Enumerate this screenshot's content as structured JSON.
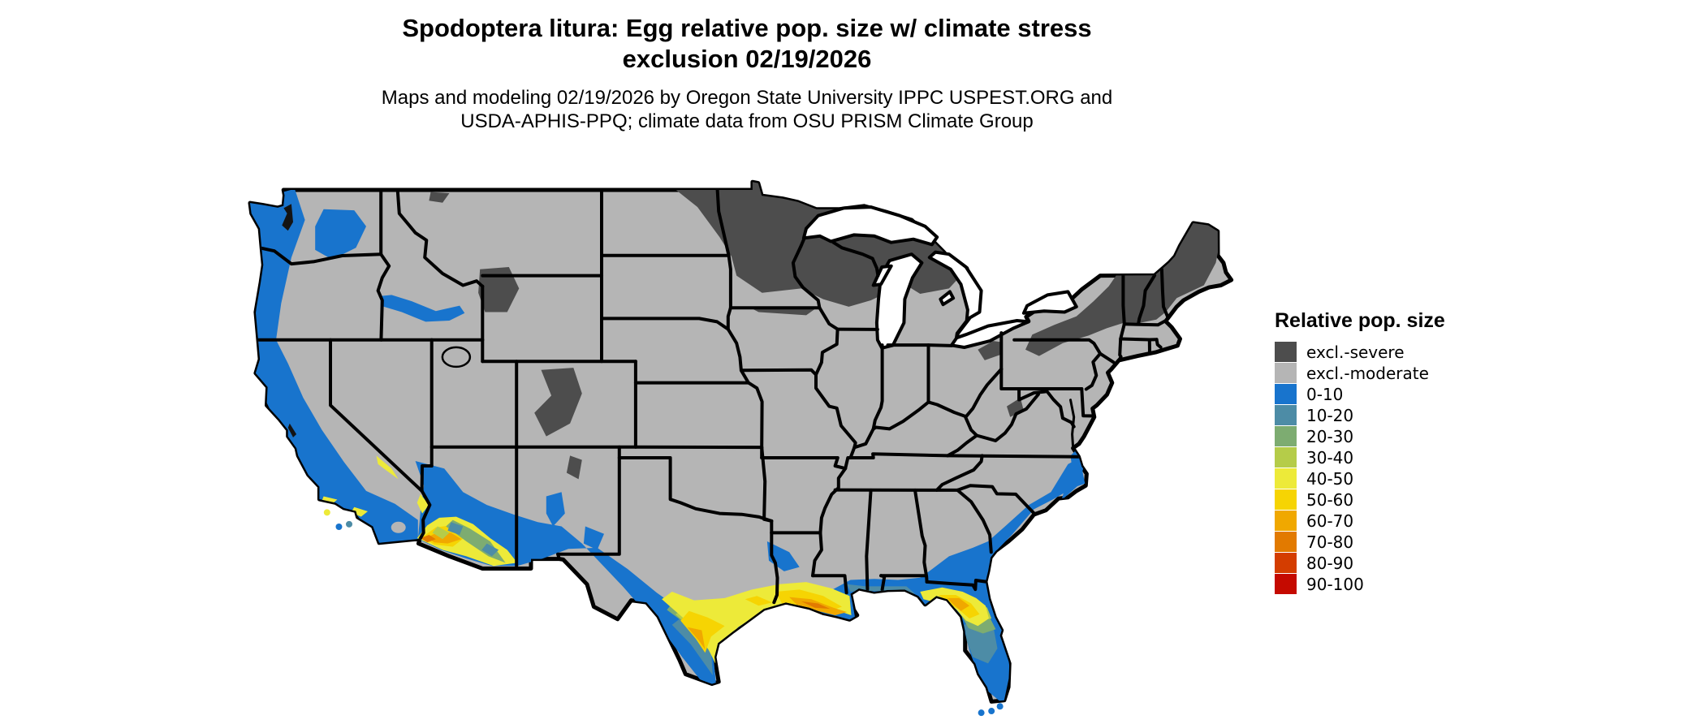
{
  "header": {
    "title_line1": "Spodoptera litura: Egg relative pop. size w/ climate stress",
    "title_line2": "exclusion 02/19/2026",
    "subtitle_line1": "Maps and modeling 02/19/2026 by Oregon State University IPPC USPEST.ORG and",
    "subtitle_line2": "USDA-APHIS-PPQ; climate data from OSU PRISM Climate Group"
  },
  "map": {
    "ocean_color": "#ffffff",
    "state_border_color": "#000000",
    "water_detail_color": "#141414"
  },
  "legend": {
    "title": "Relative pop. size",
    "items": [
      {
        "key": "exclSevere",
        "label": "excl.-severe",
        "color": "#4d4d4d"
      },
      {
        "key": "exclModerate",
        "label": "excl.-moderate",
        "color": "#b5b5b5"
      },
      {
        "key": "c0",
        "label": "0-10",
        "color": "#1874cd"
      },
      {
        "key": "c10",
        "label": "10-20",
        "color": "#4d8ca6"
      },
      {
        "key": "c20",
        "label": "20-30",
        "color": "#7dac71"
      },
      {
        "key": "c30",
        "label": "30-40",
        "color": "#b5cc49"
      },
      {
        "key": "c40",
        "label": "40-50",
        "color": "#edea39"
      },
      {
        "key": "c50",
        "label": "50-60",
        "color": "#f6d403"
      },
      {
        "key": "c60",
        "label": "60-70",
        "color": "#f0a800"
      },
      {
        "key": "c70",
        "label": "70-80",
        "color": "#e27a00"
      },
      {
        "key": "c80",
        "label": "80-90",
        "color": "#d43d00"
      },
      {
        "key": "c90",
        "label": "90-100",
        "color": "#c50a00"
      }
    ]
  }
}
